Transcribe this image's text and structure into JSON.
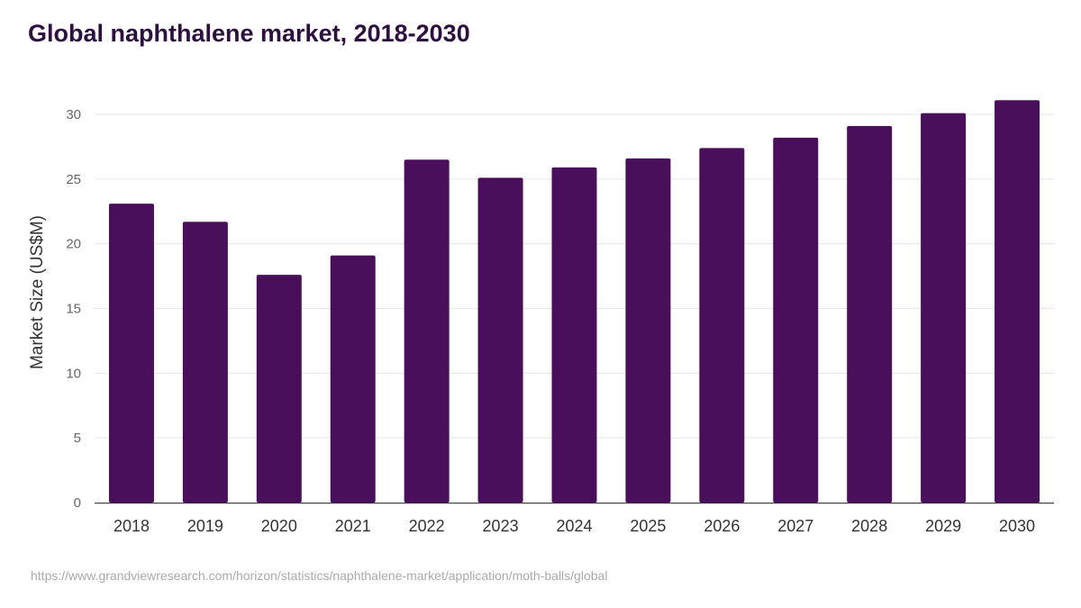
{
  "chart_data": {
    "type": "bar",
    "title": "Global naphthalene market, 2018-2030",
    "xlabel": "",
    "ylabel": "Market Size (US$M)",
    "ylim": [
      0,
      30
    ],
    "yticks": [
      0,
      5,
      10,
      15,
      20,
      25,
      30
    ],
    "grid": true,
    "categories": [
      "2018",
      "2019",
      "2020",
      "2021",
      "2022",
      "2023",
      "2024",
      "2025",
      "2026",
      "2027",
      "2028",
      "2029",
      "2030"
    ],
    "values": [
      23.1,
      21.7,
      17.6,
      19.1,
      26.5,
      25.1,
      25.9,
      26.6,
      27.4,
      28.2,
      29.1,
      30.1,
      31.1
    ],
    "bar_color": "#4a0f5a",
    "source": "https://www.grandviewresearch.com/horizon/statistics/naphthalene-market/application/moth-balls/global"
  }
}
